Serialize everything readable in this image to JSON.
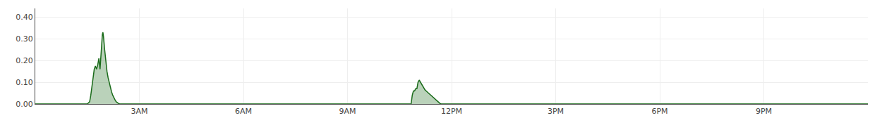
{
  "chart_data": {
    "type": "area",
    "x": [
      0,
      88,
      90,
      92,
      94,
      96,
      98,
      100,
      102,
      104,
      106,
      108,
      110,
      112,
      114,
      116,
      117,
      118,
      120,
      122,
      124,
      126,
      128,
      130,
      132,
      134,
      136,
      138,
      140,
      142,
      144,
      146,
      648,
      650,
      652,
      654,
      656,
      658,
      660,
      662,
      664,
      666,
      668,
      670,
      672,
      674,
      676,
      678,
      680,
      682,
      684,
      686,
      688,
      690,
      692,
      694,
      696,
      698,
      700,
      702,
      1440
    ],
    "values": [
      0.0,
      0.0,
      0.0,
      0.005,
      0.01,
      0.04,
      0.08,
      0.12,
      0.16,
      0.175,
      0.16,
      0.18,
      0.21,
      0.16,
      0.25,
      0.32,
      0.33,
      0.31,
      0.25,
      0.19,
      0.15,
      0.12,
      0.095,
      0.075,
      0.055,
      0.04,
      0.028,
      0.018,
      0.01,
      0.005,
      0.002,
      0.0,
      0.0,
      0.0,
      0.04,
      0.06,
      0.06,
      0.07,
      0.07,
      0.1,
      0.11,
      0.1,
      0.09,
      0.08,
      0.07,
      0.065,
      0.06,
      0.055,
      0.05,
      0.045,
      0.04,
      0.035,
      0.03,
      0.025,
      0.02,
      0.015,
      0.01,
      0.005,
      0.002,
      0.0,
      0.0
    ],
    "color": "#1a6b1a",
    "xlim": [
      0,
      1440
    ],
    "xticks": [
      {
        "value": 180,
        "label": "3AM"
      },
      {
        "value": 360,
        "label": "6AM"
      },
      {
        "value": 540,
        "label": "9AM"
      },
      {
        "value": 720,
        "label": "12PM"
      },
      {
        "value": 900,
        "label": "3PM"
      },
      {
        "value": 1080,
        "label": "6PM"
      },
      {
        "value": 1260,
        "label": "9PM"
      }
    ],
    "ylim": [
      0.0,
      0.44
    ],
    "yticks": [
      {
        "value": 0.0,
        "label": "0.00"
      },
      {
        "value": 0.1,
        "label": "0.10"
      },
      {
        "value": 0.2,
        "label": "0.20"
      },
      {
        "value": 0.3,
        "label": "0.30"
      },
      {
        "value": 0.4,
        "label": "0.40"
      }
    ],
    "grid": true
  }
}
